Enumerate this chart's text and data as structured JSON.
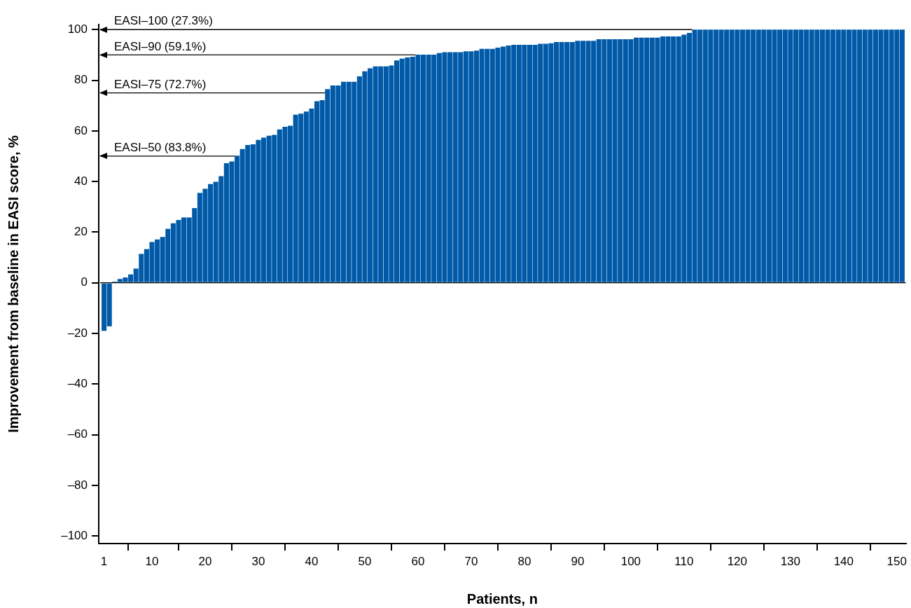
{
  "chart_data": {
    "type": "bar",
    "xlabel": "Patients, n",
    "ylabel": "Improvement from baseline in EASI score, %",
    "x": [
      1,
      2,
      3,
      4,
      5,
      6,
      7,
      8,
      9,
      10,
      11,
      12,
      13,
      14,
      15,
      16,
      17,
      18,
      19,
      20,
      21,
      22,
      23,
      24,
      25,
      26,
      27,
      28,
      29,
      30,
      31,
      32,
      33,
      34,
      35,
      36,
      37,
      38,
      39,
      40,
      41,
      42,
      43,
      44,
      45,
      46,
      47,
      48,
      49,
      50,
      51,
      52,
      53,
      54,
      55,
      56,
      57,
      58,
      59,
      60,
      61,
      62,
      63,
      64,
      65,
      66,
      67,
      68,
      69,
      70,
      71,
      72,
      73,
      74,
      75,
      76,
      77,
      78,
      79,
      80,
      81,
      82,
      83,
      84,
      85,
      86,
      87,
      88,
      89,
      90,
      91,
      92,
      93,
      94,
      95,
      96,
      97,
      98,
      99,
      100,
      101,
      102,
      103,
      104,
      105,
      106,
      107,
      108,
      109,
      110,
      111,
      112,
      113,
      114,
      115,
      116,
      117,
      118,
      119,
      120,
      121,
      122,
      123,
      124,
      125,
      126,
      127,
      128,
      129,
      130,
      131,
      132,
      133,
      134,
      135,
      136,
      137,
      138,
      139,
      140,
      141,
      142,
      143,
      144,
      145,
      146,
      147,
      148,
      149,
      150,
      151
    ],
    "values": [
      -19,
      -17.2,
      0.5,
      1.5,
      2.1,
      3.3,
      5.6,
      11.4,
      13.3,
      16.1,
      17.1,
      18.1,
      21.3,
      23.5,
      24.8,
      25.8,
      25.8,
      29.5,
      35.5,
      37.1,
      39.0,
      39.9,
      42.1,
      47.2,
      47.9,
      50.2,
      52.8,
      54.4,
      54.7,
      56.4,
      57.3,
      58.1,
      58.4,
      60.6,
      61.6,
      62.0,
      66.4,
      66.8,
      67.6,
      68.8,
      71.7,
      72.1,
      76.5,
      77.9,
      77.9,
      79.4,
      79.4,
      79.4,
      81.5,
      83.5,
      84.7,
      85.5,
      85.5,
      85.5,
      85.8,
      87.8,
      88.5,
      89.0,
      89.3,
      90.1,
      90.1,
      90.1,
      90.1,
      90.7,
      91.1,
      91.1,
      91.1,
      91.1,
      91.4,
      91.4,
      91.7,
      92.4,
      92.4,
      92.4,
      92.9,
      93.3,
      93.7,
      94.0,
      94.0,
      94.0,
      94.0,
      94.0,
      94.4,
      94.4,
      94.6,
      95.1,
      95.1,
      95.1,
      95.1,
      95.6,
      95.6,
      95.6,
      95.6,
      96.2,
      96.2,
      96.2,
      96.2,
      96.2,
      96.2,
      96.2,
      96.8,
      96.8,
      96.8,
      96.8,
      96.8,
      97.3,
      97.3,
      97.3,
      97.3,
      98.0,
      98.7,
      100,
      100,
      100,
      100,
      100,
      100,
      100,
      100,
      100,
      100,
      100,
      100,
      100,
      100,
      100,
      100,
      100,
      100,
      100,
      100,
      100,
      100,
      100,
      100,
      100,
      100,
      100,
      100,
      100,
      100,
      100,
      100,
      100,
      100,
      100,
      100,
      100,
      100,
      100,
      100
    ],
    "color": "#005aa8",
    "xlim": [
      0,
      151.7
    ],
    "xticks": [
      1,
      10,
      20,
      30,
      40,
      50,
      60,
      70,
      80,
      90,
      100,
      110,
      120,
      130,
      140,
      150
    ],
    "ylim": [
      -103,
      102
    ],
    "yticks": [
      {
        "value": -100,
        "label": "–100"
      },
      {
        "value": -80,
        "label": "–80"
      },
      {
        "value": -60,
        "label": "–60"
      },
      {
        "value": -40,
        "label": "–40"
      },
      {
        "value": -20,
        "label": "–20"
      },
      0,
      20,
      40,
      60,
      80,
      100
    ],
    "ref_lines": [
      {
        "axis": "y",
        "value": 0,
        "color": "#000000"
      },
      {
        "axis": "y",
        "value": 100,
        "label": "EASI–100 (27.3%)",
        "color": "#000000"
      },
      {
        "axis": "y",
        "value": 90,
        "label": "EASI–90 (59.1%)",
        "color": "#000000"
      },
      {
        "axis": "y",
        "value": 75,
        "label": "EASI–75 (72.7%)",
        "color": "#000000"
      },
      {
        "axis": "y",
        "value": 50,
        "label": "EASI–50 (83.8%)",
        "color": "#000000"
      }
    ],
    "legend": false
  }
}
